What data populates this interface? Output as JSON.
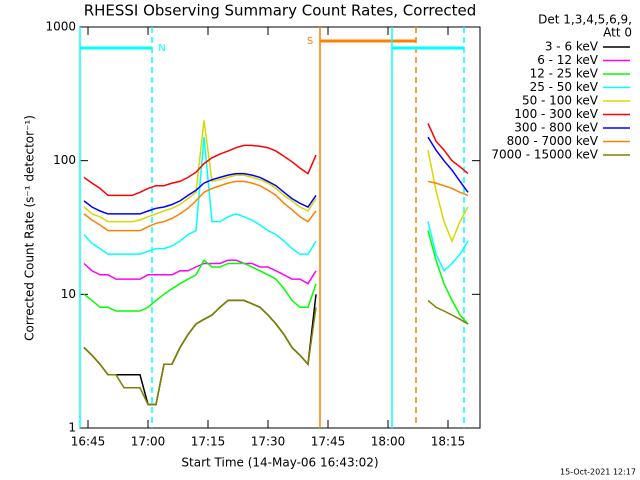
{
  "chart_data": {
    "type": "line",
    "title": "RHESSI Observing Summary Count Rates, Corrected",
    "x_label": "Start Time (14-May-06 16:43:02)",
    "y_label": "Corrected Count Rate (s⁻¹ detector⁻¹)",
    "legend_title": [
      "Det 1,3,4,5,6,9,",
      "Att 0"
    ],
    "timestamp": "15-Oct-2021 12:17",
    "log_y": true,
    "ylim": [
      1,
      1000
    ],
    "yticks": [
      1,
      10,
      100,
      1000
    ],
    "xlim": [
      "16:43",
      "18:23"
    ],
    "xticks": [
      "16:45",
      "17:00",
      "17:15",
      "17:30",
      "17:45",
      "18:00",
      "18:15"
    ],
    "intervals": [
      {
        "label": "N",
        "start": "16:43",
        "end": "17:01",
        "color": "#00ffff"
      },
      {
        "label": "S",
        "start": "17:43",
        "end": "18:07",
        "color": "#ff8000"
      },
      {
        "start": "18:01",
        "end": "18:19",
        "color": "#00ffff"
      }
    ],
    "x": [
      "16:44",
      "16:46",
      "16:48",
      "16:50",
      "16:52",
      "16:54",
      "16:56",
      "16:58",
      "17:00",
      "17:02",
      "17:04",
      "17:06",
      "17:08",
      "17:10",
      "17:12",
      "17:14",
      "17:16",
      "17:18",
      "17:20",
      "17:22",
      "17:24",
      "17:26",
      "17:28",
      "17:30",
      "17:32",
      "17:34",
      "17:36",
      "17:38",
      "17:40",
      "17:42",
      "17:50",
      "18:10",
      "18:12",
      "18:14",
      "18:16",
      "18:18",
      "18:20"
    ],
    "series": [
      {
        "name": "3 - 6 keV",
        "color": "#000000",
        "values": [
          4,
          3.5,
          3,
          2.5,
          2.5,
          2.5,
          2.5,
          2.5,
          1.5,
          1.5,
          3,
          3,
          4,
          5,
          6,
          6.5,
          7,
          8,
          9,
          9,
          9,
          8.5,
          8,
          7,
          6,
          5,
          4,
          3.5,
          3,
          10,
          null,
          null,
          null,
          null,
          null,
          null,
          null
        ]
      },
      {
        "name": "6 - 12 keV",
        "color": "#ff00ff",
        "values": [
          17,
          15,
          14,
          14,
          13,
          13,
          13,
          13,
          14,
          14,
          14,
          14,
          15,
          15,
          16,
          17,
          17,
          17,
          18,
          18,
          17,
          17,
          16,
          16,
          15,
          14,
          13,
          13,
          12,
          15,
          null,
          null,
          null,
          null,
          null,
          null,
          null
        ]
      },
      {
        "name": "12 - 25 keV",
        "color": "#00ff00",
        "values": [
          10,
          9,
          8,
          8,
          7.5,
          7.5,
          7.5,
          7.5,
          8,
          9,
          10,
          11,
          12,
          13,
          14,
          18,
          16,
          16,
          17,
          17,
          17,
          16,
          15,
          14,
          13,
          11,
          9,
          8,
          8,
          12,
          null,
          30,
          18,
          12,
          9,
          7,
          6
        ]
      },
      {
        "name": "25 - 50 keV",
        "color": "#00ffff",
        "values": [
          28,
          24,
          22,
          20,
          20,
          20,
          20,
          20,
          21,
          22,
          22,
          23,
          25,
          28,
          30,
          150,
          35,
          35,
          38,
          40,
          38,
          36,
          33,
          30,
          28,
          25,
          22,
          20,
          20,
          25,
          null,
          35,
          20,
          15,
          17,
          20,
          25
        ]
      },
      {
        "name": "50 - 100 keV",
        "color": "#d8d800",
        "values": [
          45,
          40,
          38,
          35,
          35,
          35,
          35,
          36,
          38,
          40,
          42,
          44,
          47,
          52,
          58,
          200,
          70,
          72,
          75,
          78,
          78,
          75,
          72,
          68,
          62,
          55,
          50,
          45,
          42,
          52,
          null,
          120,
          60,
          35,
          25,
          35,
          45
        ]
      },
      {
        "name": "100 - 300 keV",
        "color": "#ff0000",
        "values": [
          75,
          68,
          62,
          55,
          55,
          55,
          55,
          58,
          62,
          65,
          65,
          68,
          70,
          75,
          82,
          95,
          105,
          112,
          118,
          125,
          130,
          130,
          128,
          125,
          118,
          108,
          98,
          88,
          80,
          110,
          null,
          190,
          140,
          120,
          100,
          90,
          80
        ]
      },
      {
        "name": "300 - 800 keV",
        "color": "#0000ff",
        "values": [
          50,
          45,
          42,
          40,
          40,
          40,
          40,
          40,
          42,
          44,
          45,
          47,
          50,
          55,
          60,
          68,
          72,
          75,
          78,
          80,
          80,
          78,
          75,
          70,
          65,
          58,
          52,
          48,
          45,
          55,
          null,
          150,
          120,
          100,
          85,
          70,
          58
        ]
      },
      {
        "name": "800 - 7000 keV",
        "color": "#ff8000",
        "values": [
          40,
          36,
          33,
          30,
          30,
          30,
          30,
          30,
          32,
          34,
          35,
          37,
          40,
          44,
          50,
          58,
          62,
          65,
          68,
          70,
          70,
          68,
          65,
          60,
          55,
          48,
          43,
          38,
          35,
          42,
          null,
          70,
          68,
          65,
          62,
          58,
          55
        ]
      },
      {
        "name": "7000 - 15000 keV",
        "color": "#808000",
        "values": [
          4,
          3.5,
          3,
          2.5,
          2.5,
          2,
          2,
          2,
          1.5,
          1.5,
          3,
          3,
          4,
          5,
          6,
          6.5,
          7,
          8,
          9,
          9,
          9,
          8.5,
          8,
          7,
          6,
          5,
          4,
          3.5,
          3,
          8,
          null,
          9,
          8,
          7.5,
          7,
          6.5,
          6
        ]
      }
    ]
  }
}
